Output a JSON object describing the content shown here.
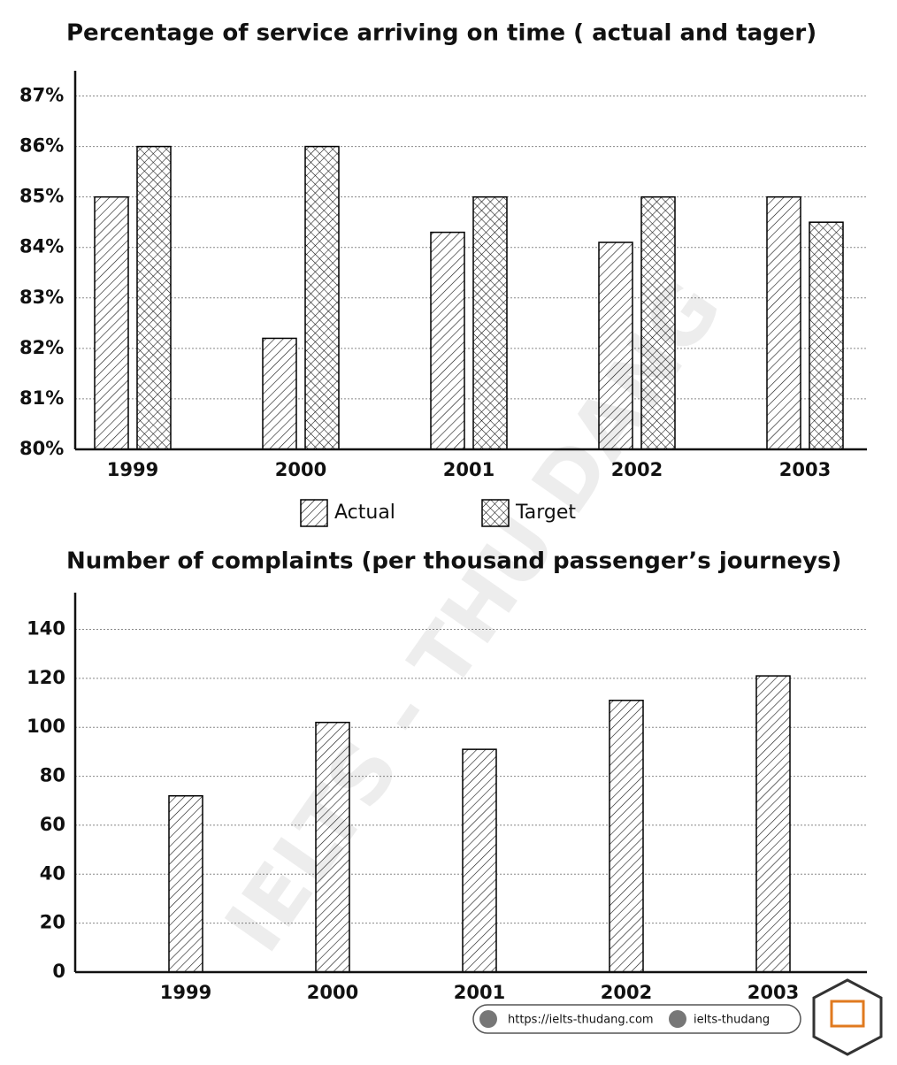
{
  "chart_data": [
    {
      "type": "bar",
      "title": "Percentage of service arriving on time ( actual and tager)",
      "categories": [
        "1999",
        "2000",
        "2001",
        "2002",
        "2003"
      ],
      "series": [
        {
          "name": "Actual",
          "color": "#000000",
          "pattern": "hatch",
          "values": [
            85,
            82.2,
            84.3,
            84.1,
            85
          ]
        },
        {
          "name": "Target",
          "color": "#000000",
          "pattern": "crosshatch",
          "values": [
            86,
            86,
            85,
            85,
            84.5
          ]
        }
      ],
      "ylim": [
        80,
        87.5
      ],
      "yticks": [
        {
          "value": 80,
          "label": "80%"
        },
        {
          "value": 81,
          "label": "81%"
        },
        {
          "value": 82,
          "label": "82%"
        },
        {
          "value": 83,
          "label": "83%"
        },
        {
          "value": 84,
          "label": "84%"
        },
        {
          "value": 85,
          "label": "85%"
        },
        {
          "value": 86,
          "label": "86%"
        },
        {
          "value": 87,
          "label": "87%"
        }
      ],
      "grid": true,
      "legend": "bottom"
    },
    {
      "type": "bar",
      "title": "Number of complaints (per thousand passenger’s journeys)",
      "categories": [
        "1999",
        "2000",
        "2001",
        "2002",
        "2003"
      ],
      "values": [
        72,
        102,
        91,
        111,
        121
      ],
      "color": "#000000",
      "pattern": "hatch",
      "ylim": [
        0,
        155
      ],
      "yticks": [
        0,
        20,
        40,
        60,
        80,
        100,
        120,
        140
      ],
      "grid": true
    }
  ],
  "watermark": "IELTS - THU DANG",
  "footer": {
    "website": "https://ielts-thudang.com",
    "facebook": "ielts-thudang"
  }
}
